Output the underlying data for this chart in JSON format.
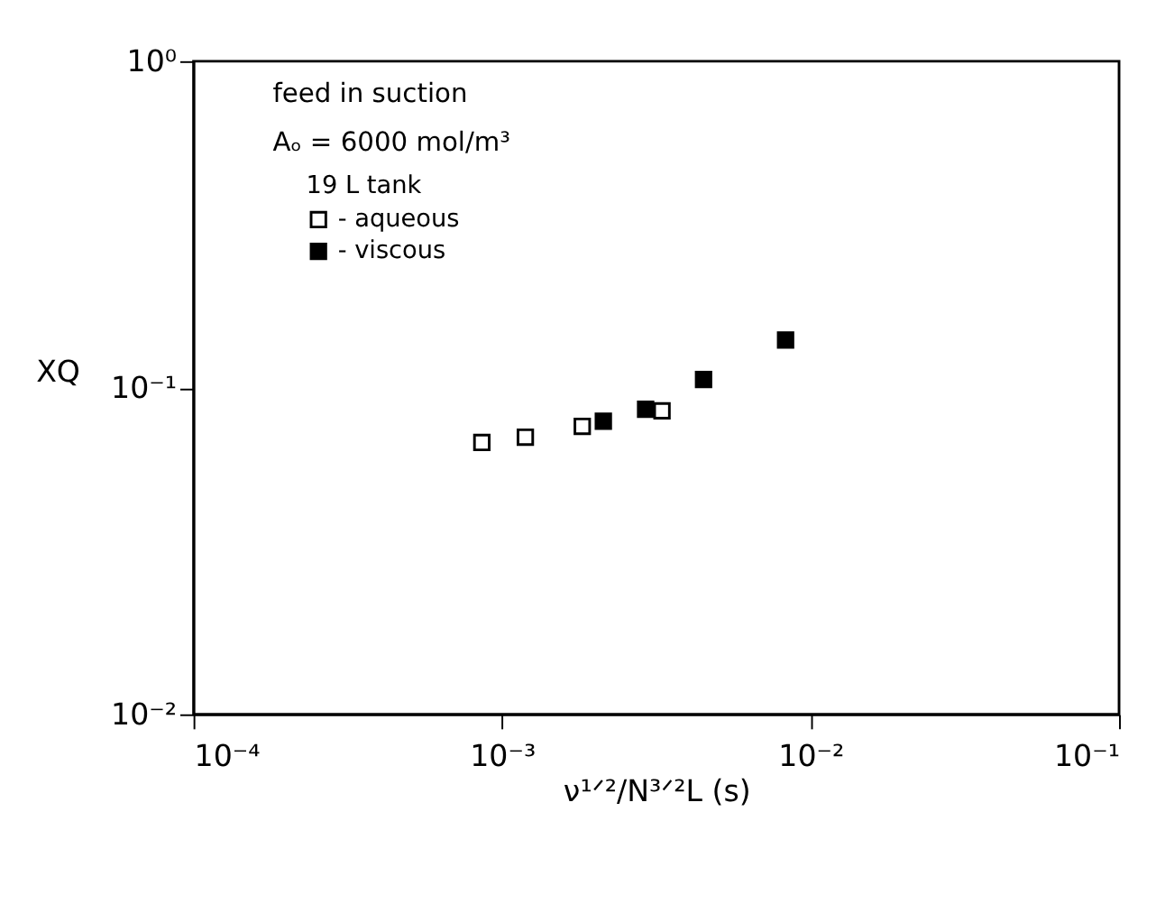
{
  "chart_data": {
    "type": "scatter",
    "xlabel": "ν¹ᐟ²/N³ᐟ²L (s)",
    "ylabel": "XQ",
    "legend_title": "19 L tank",
    "annotations": [
      "feed in suction",
      "Aₒ = 6000 mol/m³"
    ],
    "series": [
      {
        "name": "- aqueous",
        "color": "#000000",
        "x": [
          0.00086,
          0.00119,
          0.00182,
          0.0033
        ],
        "values": [
          0.068,
          0.0706,
          0.0762,
          0.085
        ]
      },
      {
        "name": "- viscous",
        "color": "#000000",
        "x": [
          0.00213,
          0.00292,
          0.0045,
          0.0083
        ],
        "values": [
          0.079,
          0.086,
          0.106,
          0.14
        ]
      }
    ],
    "xlim": [
      0.0001,
      0.1
    ],
    "ylim": [
      0.01,
      1
    ],
    "xticks": [
      {
        "value": 0.0001,
        "label": "10⁻⁴"
      },
      {
        "value": 0.001,
        "label": "10⁻³"
      },
      {
        "value": 0.01,
        "label": "10⁻²"
      },
      {
        "value": 0.1,
        "label": "10⁻¹"
      }
    ],
    "yticks": [
      {
        "value": 0.01,
        "label": "10⁻²"
      },
      {
        "value": 0.1,
        "label": "10⁻¹"
      },
      {
        "value": 1,
        "label": "10⁰"
      }
    ],
    "log": "xy",
    "grid": false,
    "legend": "top left",
    "marker": "square"
  }
}
